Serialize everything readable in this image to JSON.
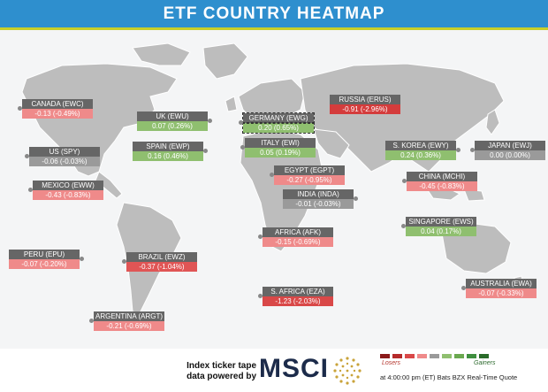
{
  "title": "ETF COUNTRY HEATMAP",
  "cards": [
    {
      "id": "canada",
      "label": "CANADA (EWC)",
      "value": "-0.13 (-0.49%)",
      "color": "#ef8a8a"
    },
    {
      "id": "us",
      "label": "US (SPY)",
      "value": "-0.06 (-0.03%)",
      "color": "#9a9a9a"
    },
    {
      "id": "mexico",
      "label": "MEXICO (EWW)",
      "value": "-0.43 (-0.83%)",
      "color": "#ef8a8a"
    },
    {
      "id": "peru",
      "label": "PERU (EPU)",
      "value": "-0.07 (-0.20%)",
      "color": "#ef8a8a"
    },
    {
      "id": "brazil",
      "label": "BRAZIL (EWZ)",
      "value": "-0.37 (-1.04%)",
      "color": "#e05555"
    },
    {
      "id": "argentina",
      "label": "ARGENTINA (ARGT)",
      "value": "-0.21 (-0.69%)",
      "color": "#ef8a8a"
    },
    {
      "id": "uk",
      "label": "UK (EWU)",
      "value": "0.07 (0.26%)",
      "color": "#8fbf6f"
    },
    {
      "id": "spain",
      "label": "SPAIN (EWP)",
      "value": "0.16 (0.46%)",
      "color": "#8fbf6f"
    },
    {
      "id": "germany",
      "label": "GERMANY (EWG)",
      "value": "0.20 (0.65%)",
      "color": "#8fbf6f"
    },
    {
      "id": "italy",
      "label": "ITALY (EWI)",
      "value": "0.05 (0.19%)",
      "color": "#8fbf6f"
    },
    {
      "id": "egypt",
      "label": "EGYPT (EGPT)",
      "value": "-0.27 (-0.95%)",
      "color": "#ef8a8a"
    },
    {
      "id": "india",
      "label": "INDIA (INDA)",
      "value": "-0.01 (-0.03%)",
      "color": "#9a9a9a"
    },
    {
      "id": "africa",
      "label": "AFRICA (AFK)",
      "value": "-0.15 (-0.69%)",
      "color": "#ef8a8a"
    },
    {
      "id": "safrica",
      "label": "S. AFRICA (EZA)",
      "value": "-1.23 (-2.03%)",
      "color": "#d94848"
    },
    {
      "id": "russia",
      "label": "RUSSIA (ERUS)",
      "value": "-0.91 (-2.96%)",
      "color": "#d43c3c"
    },
    {
      "id": "skorea",
      "label": "S. KOREA (EWY)",
      "value": "0.24 (0.36%)",
      "color": "#8fbf6f"
    },
    {
      "id": "japan",
      "label": "JAPAN (EWJ)",
      "value": "0.00 (0.00%)",
      "color": "#9a9a9a"
    },
    {
      "id": "china",
      "label": "CHINA (MCHI)",
      "value": "-0.45 (-0.83%)",
      "color": "#ef8a8a"
    },
    {
      "id": "singapore",
      "label": "SINGAPORE (EWS)",
      "value": "0.04 (0.17%)",
      "color": "#8fbf6f"
    },
    {
      "id": "australia",
      "label": "AUSTRALIA (EWA)",
      "value": "-0.07 (-0.33%)",
      "color": "#ef8a8a"
    }
  ],
  "footer": {
    "powered_line1": "Index ticker tape",
    "powered_line2": "data powered by",
    "brand": "MSCI",
    "legend_losers": "Losers",
    "legend_gainers": "Gainers",
    "legend_colors": [
      "#8b1a1a",
      "#b52a2a",
      "#d94848",
      "#ef8a8a",
      "#9a9a9a",
      "#8fbf6f",
      "#6aa84f",
      "#3f8f3f",
      "#2a6b2a"
    ],
    "quote_note": "at 4:00:00 pm (ET) Bats BZX Real-Time Quote"
  }
}
